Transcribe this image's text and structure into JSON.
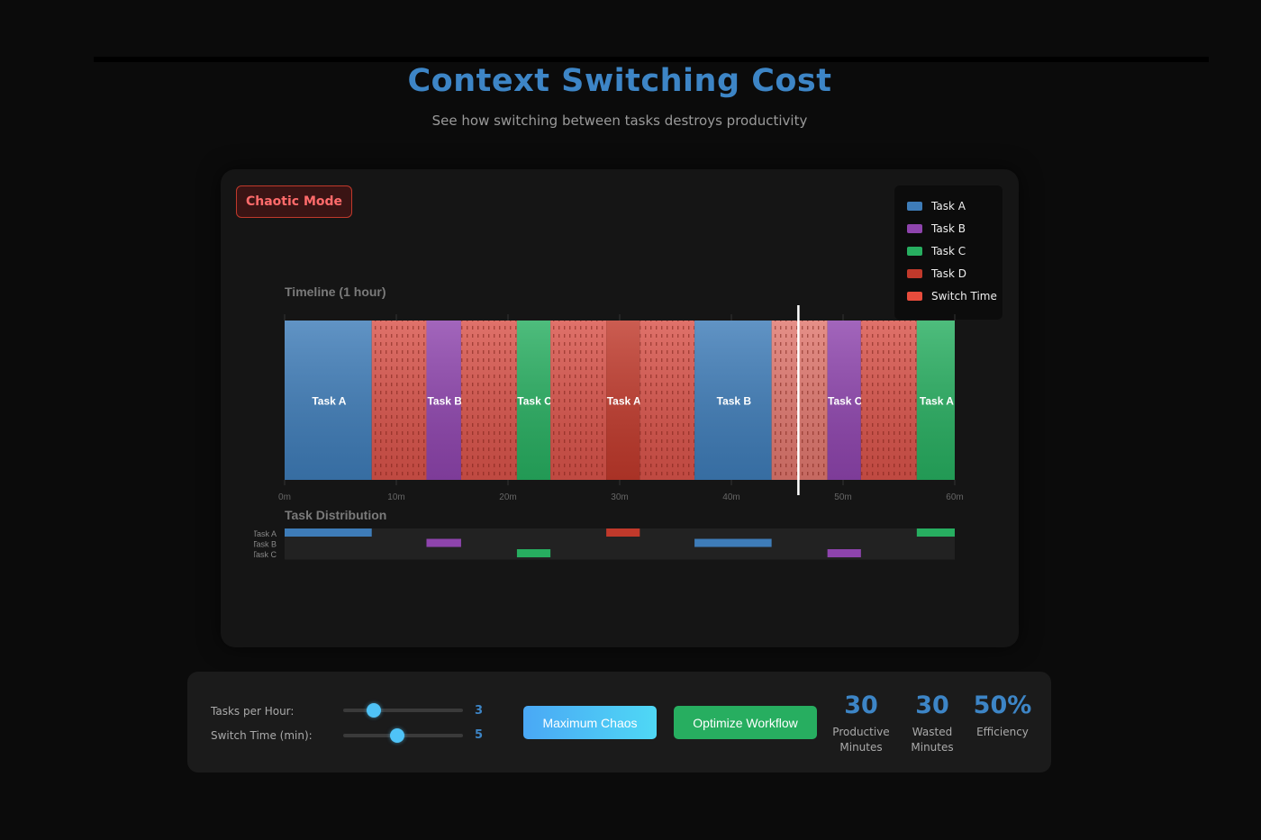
{
  "header": {
    "title": "Context Switching Cost",
    "subtitle": "See how switching between tasks destroys productivity"
  },
  "mode_badge": "Chaotic Mode",
  "legend": [
    {
      "label": "Task A",
      "color": "#3e7cb8"
    },
    {
      "label": "Task B",
      "color": "#8e44ad"
    },
    {
      "label": "Task C",
      "color": "#27ae60"
    },
    {
      "label": "Task D",
      "color": "#c0392b"
    },
    {
      "label": "Switch Time",
      "color": "#e74c3c"
    }
  ],
  "timeline": {
    "label": "Timeline (1 hour)",
    "current_time_min": 46,
    "colors": {
      "Task A": "#3e7cb8",
      "Task B": "#8e44ad",
      "Task C": "#27ae60",
      "Task D": "#c0392b",
      "switch": "#d9534a",
      "switch_highlight": "#e0776e"
    }
  },
  "distribution": {
    "label": "Task Distribution",
    "rows": [
      "Task A",
      "Task B",
      "Task C"
    ]
  },
  "chart_data": {
    "type": "bar",
    "title": "Timeline (1 hour)",
    "x_unit": "minutes",
    "xlim": [
      0,
      60
    ],
    "ticks": [
      "0m",
      "10m",
      "20m",
      "30m",
      "40m",
      "50m",
      "60m"
    ],
    "segments": [
      {
        "kind": "task",
        "label": "Task A",
        "start": 0,
        "end": 7.8
      },
      {
        "kind": "switch",
        "start": 7.8,
        "end": 12.7
      },
      {
        "kind": "task",
        "label": "Task B",
        "start": 12.7,
        "end": 15.8
      },
      {
        "kind": "switch",
        "start": 15.8,
        "end": 20.8
      },
      {
        "kind": "task",
        "label": "Task C",
        "start": 20.8,
        "end": 23.8
      },
      {
        "kind": "switch",
        "start": 23.8,
        "end": 28.8
      },
      {
        "kind": "task",
        "label": "Task A",
        "start": 28.8,
        "end": 31.8,
        "color_key": "Task D"
      },
      {
        "kind": "switch",
        "start": 31.8,
        "end": 36.7
      },
      {
        "kind": "task",
        "label": "Task B",
        "start": 36.7,
        "end": 43.6,
        "color_key": "Task A"
      },
      {
        "kind": "switch",
        "start": 43.6,
        "end": 48.6,
        "highlight": true
      },
      {
        "kind": "task",
        "label": "Task C",
        "start": 48.6,
        "end": 51.6,
        "color_key": "Task B"
      },
      {
        "kind": "switch",
        "start": 51.6,
        "end": 56.6
      },
      {
        "kind": "task",
        "label": "Task A",
        "start": 56.6,
        "end": 60,
        "color_key": "Task C"
      }
    ],
    "distribution": [
      {
        "row": "Task A",
        "start": 0,
        "end": 7.8,
        "color_key": "Task A"
      },
      {
        "row": "Task A",
        "start": 28.8,
        "end": 31.8,
        "color_key": "Task D"
      },
      {
        "row": "Task A",
        "start": 56.6,
        "end": 60,
        "color_key": "Task C"
      },
      {
        "row": "Task B",
        "start": 12.7,
        "end": 15.8,
        "color_key": "Task B"
      },
      {
        "row": "Task B",
        "start": 36.7,
        "end": 43.6,
        "color_key": "Task A"
      },
      {
        "row": "Task C",
        "start": 20.8,
        "end": 23.8,
        "color_key": "Task C"
      },
      {
        "row": "Task C",
        "start": 48.6,
        "end": 51.6,
        "color_key": "Task B"
      }
    ]
  },
  "controls": {
    "tasks_per_hour": {
      "label": "Tasks per Hour:",
      "value": "3",
      "fraction": 0.2
    },
    "switch_time": {
      "label": "Switch Time (min):",
      "value": "5",
      "fraction": 0.45
    },
    "chaos_button": "Maximum Chaos",
    "optimize_button": "Optimize Workflow"
  },
  "stats": [
    {
      "value": "30",
      "label_line1": "Productive",
      "label_line2": "Minutes"
    },
    {
      "value": "30",
      "label_line1": "Wasted",
      "label_line2": "Minutes"
    },
    {
      "value": "50%",
      "label_line1": "Efficiency",
      "label_line2": ""
    }
  ]
}
